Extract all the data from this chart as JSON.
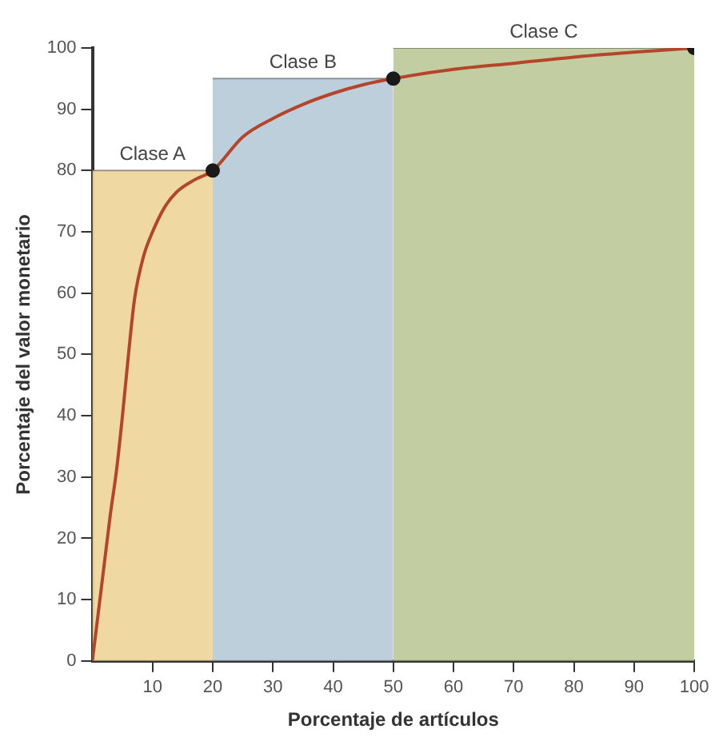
{
  "chart_data": {
    "type": "line",
    "xlabel": "Porcentaje de artículos",
    "ylabel": "Porcentaje del valor monetario",
    "xlim": [
      0,
      100
    ],
    "ylim": [
      0,
      100
    ],
    "xticks": [
      10,
      20,
      30,
      40,
      50,
      60,
      70,
      80,
      90,
      100
    ],
    "yticks": [
      0,
      10,
      20,
      30,
      40,
      50,
      60,
      70,
      80,
      90,
      100
    ],
    "grid": false,
    "legend": false,
    "series": [
      {
        "type": "area",
        "name": "Clase A",
        "color": "#eed59a",
        "x": [
          0,
          20
        ],
        "values": [
          80,
          80
        ]
      },
      {
        "type": "area",
        "name": "Clase B",
        "color": "#b9ccd9",
        "x": [
          20,
          50
        ],
        "values": [
          95,
          95
        ]
      },
      {
        "type": "area",
        "name": "Clase C",
        "color": "#bfc99b",
        "x": [
          50,
          100
        ],
        "values": [
          100,
          100
        ]
      },
      {
        "color": "#b5452a",
        "marker": "none",
        "x": [
          0,
          1,
          2,
          3,
          4,
          5,
          6,
          7,
          8.5,
          10,
          12,
          14,
          17,
          20,
          25,
          30,
          35,
          40,
          45,
          50,
          60,
          70,
          80,
          90,
          100
        ],
        "values": [
          0,
          8,
          16,
          24,
          31,
          40,
          50,
          59,
          66,
          70,
          74,
          76.5,
          78.5,
          80,
          85.5,
          88.5,
          90.8,
          92.6,
          94,
          95,
          96.5,
          97.5,
          98.5,
          99.3,
          100
        ]
      },
      {
        "type": "scatter",
        "color": "#1a1a1a",
        "marker": "circle",
        "x": [
          20,
          50,
          100
        ],
        "values": [
          80,
          95,
          100
        ]
      }
    ]
  }
}
